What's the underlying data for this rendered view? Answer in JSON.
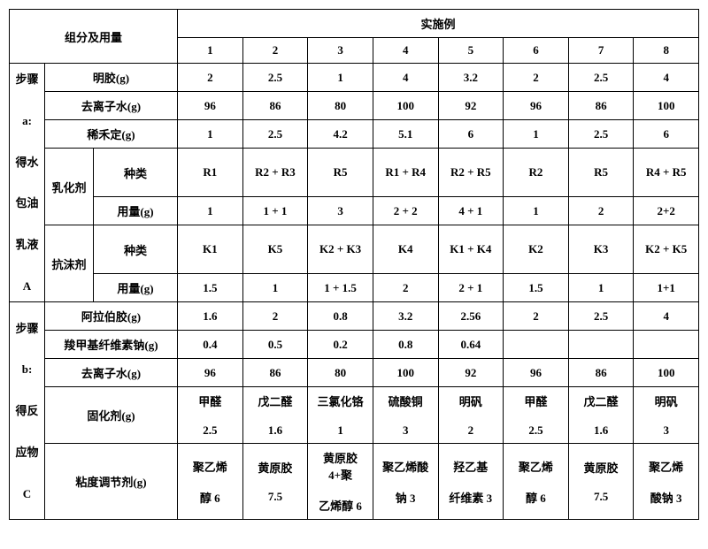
{
  "header": {
    "components_title": "组分及用量",
    "examples_title": "实施例",
    "cols": [
      "1",
      "2",
      "3",
      "4",
      "5",
      "6",
      "7",
      "8"
    ]
  },
  "stepA": {
    "label_line1": "步骤",
    "label_line2": "a:",
    "label_line3": "得水",
    "label_line4": "包油",
    "label_line5": "乳液",
    "label_line6": "A",
    "gelatin": {
      "label": "明胶(g)",
      "v": [
        "2",
        "2.5",
        "1",
        "4",
        "3.2",
        "2",
        "2.5",
        "4"
      ]
    },
    "diwater": {
      "label": "去离子水(g)",
      "v": [
        "96",
        "86",
        "80",
        "100",
        "92",
        "96",
        "86",
        "100"
      ]
    },
    "xiheding": {
      "label": "稀禾定(g)",
      "v": [
        "1",
        "2.5",
        "4.2",
        "5.1",
        "6",
        "1",
        "2.5",
        "6"
      ]
    },
    "emulsifier_label": "乳化剂",
    "e_type": {
      "label": "种类",
      "v": [
        "R1",
        "R2 + R3",
        "R5",
        "R1 + R4",
        "R2 + R5",
        "R2",
        "R5",
        "R4 + R5"
      ]
    },
    "e_amount": {
      "label": "用量(g)",
      "v": [
        "1",
        "1 + 1",
        "3",
        "2 + 2",
        "4 + 1",
        "1",
        "2",
        "2+2"
      ]
    },
    "antifoam_label": "抗沫剂",
    "a_type": {
      "label": "种类",
      "v": [
        "K1",
        "K5",
        "K2 + K3",
        "K4",
        "K1 + K4",
        "K2",
        "K3",
        "K2 + K5"
      ]
    },
    "a_amount": {
      "label": "用量(g)",
      "v": [
        "1.5",
        "1",
        "1 + 1.5",
        "2",
        "2 + 1",
        "1.5",
        "1",
        "1+1"
      ]
    }
  },
  "stepB": {
    "label_line1": "步骤",
    "label_line2": "b:",
    "label_line3": "得反",
    "label_line4": "应物",
    "label_line5": "C",
    "gum": {
      "label": "阿拉伯胶(g)",
      "v": [
        "1.6",
        "2",
        "0.8",
        "3.2",
        "2.56",
        "2",
        "2.5",
        "4"
      ]
    },
    "cmc": {
      "label": "羧甲基纤维素钠(g)",
      "v": [
        "0.4",
        "0.5",
        "0.2",
        "0.8",
        "0.64",
        "",
        "",
        ""
      ]
    },
    "diwater": {
      "label": "去离子水(g)",
      "v": [
        "96",
        "86",
        "80",
        "100",
        "92",
        "96",
        "86",
        "100"
      ]
    },
    "curing": {
      "label": "固化剂(g)",
      "names": [
        "甲醛",
        "戊二醛",
        "三氯化铬",
        "硫酸铜",
        "明矾",
        "甲醛",
        "戊二醛",
        "明矾"
      ],
      "vals": [
        "2.5",
        "1.6",
        "1",
        "3",
        "2",
        "2.5",
        "1.6",
        "3"
      ]
    },
    "viscosity": {
      "label": "粘度调节剂(g)",
      "lines": [
        [
          "聚乙烯",
          "醇  6"
        ],
        [
          "黄原胶",
          "7.5"
        ],
        [
          "黄原胶 4+聚",
          "乙烯醇 6"
        ],
        [
          "聚乙烯酸",
          "钠  3"
        ],
        [
          "羟乙基",
          "纤维素  3"
        ],
        [
          "聚乙烯",
          "醇  6"
        ],
        [
          "黄原胶",
          "7.5"
        ],
        [
          "聚乙烯",
          "酸钠 3"
        ]
      ]
    }
  }
}
